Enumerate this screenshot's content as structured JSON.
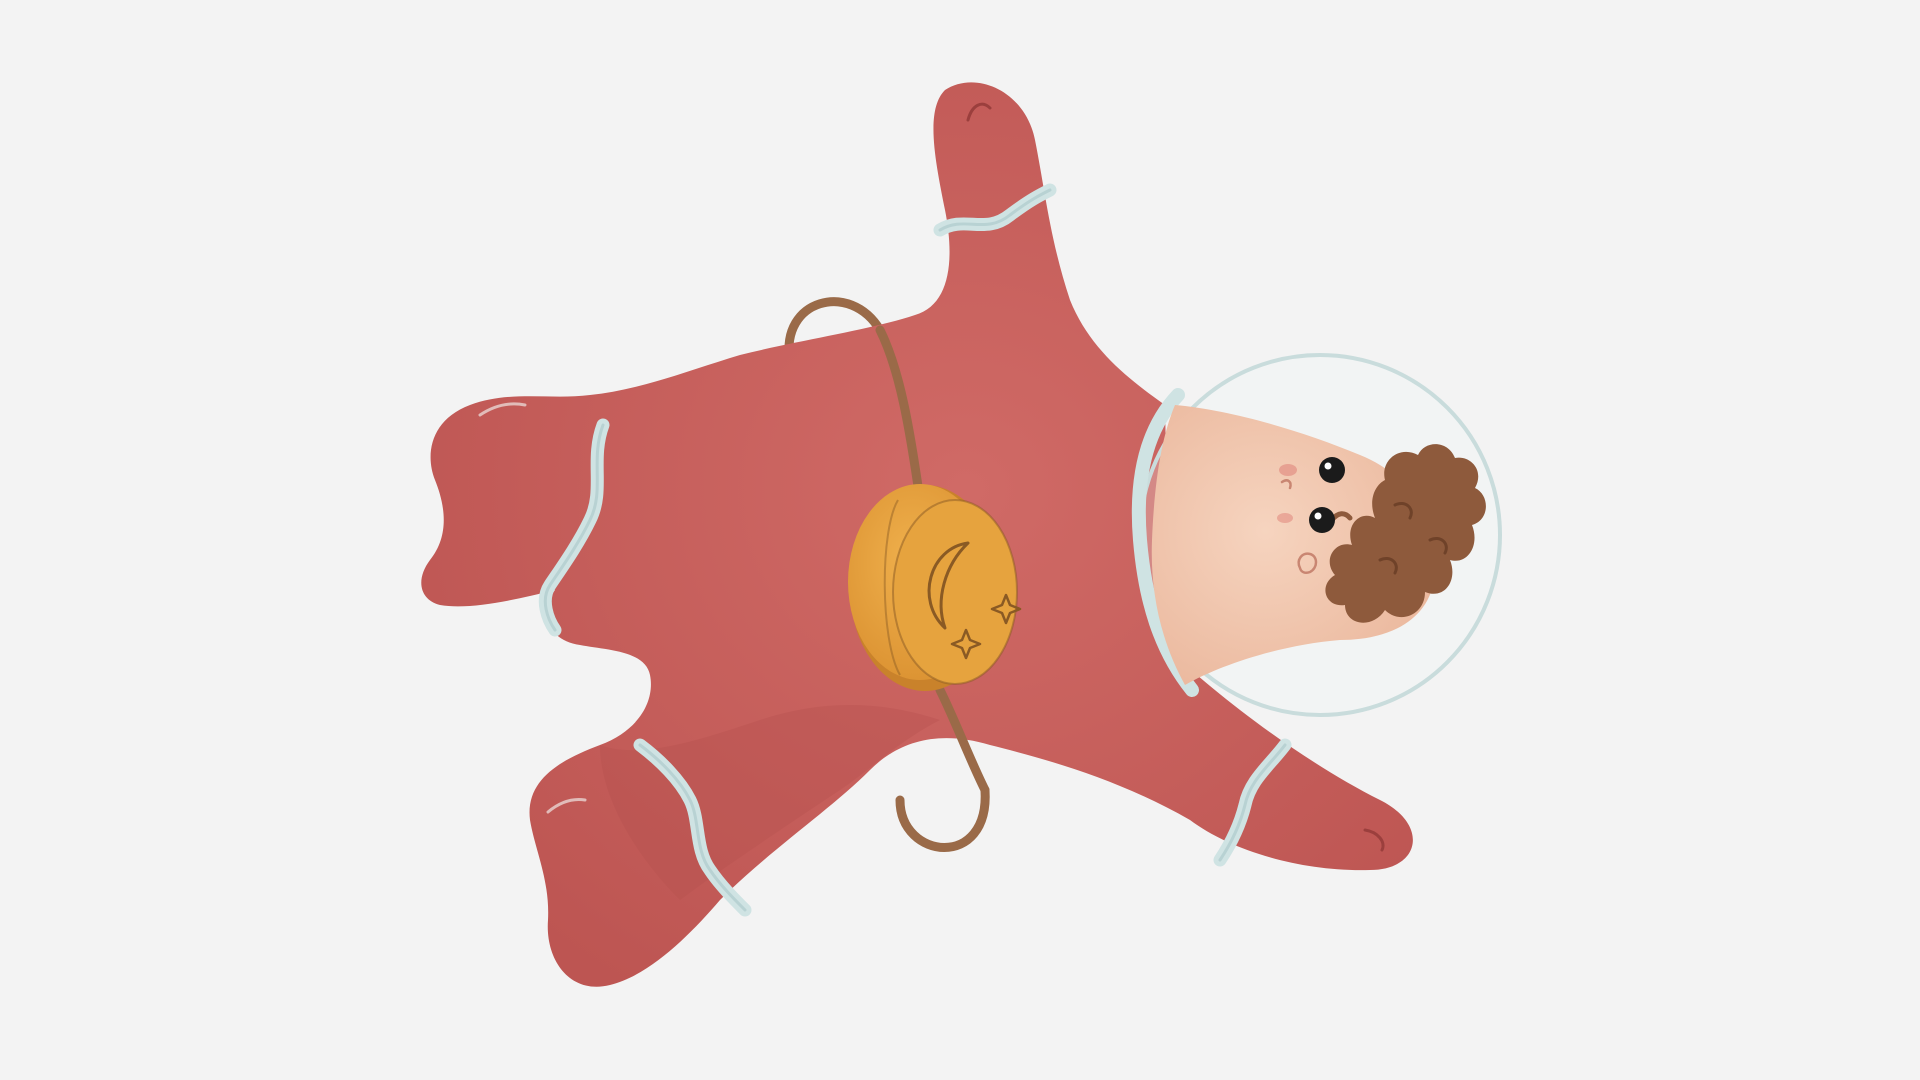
{
  "scene": {
    "subject": "floating-astronaut",
    "icons": [
      "crescent-moon-icon",
      "sparkle-star-icon"
    ],
    "colors": {
      "background": "#f3f3f3",
      "suit": "#c85f5c",
      "suit_shadow": "#b3504e",
      "suit_highlight": "#d67570",
      "cuff": "#cfe3e3",
      "cuff_edge": "#a9c7c8",
      "pack": "#e6a33e",
      "pack_dark": "#c9822b",
      "pack_line": "#8a5a24",
      "strap": "#9a6a48",
      "helmet_ring": "#c9dcdc",
      "face": "#f2c8b0",
      "face_shadow": "#e9b299",
      "hair": "#8e5a3c",
      "eye": "#1b1b1b",
      "cheek": "#e59a8c"
    }
  }
}
